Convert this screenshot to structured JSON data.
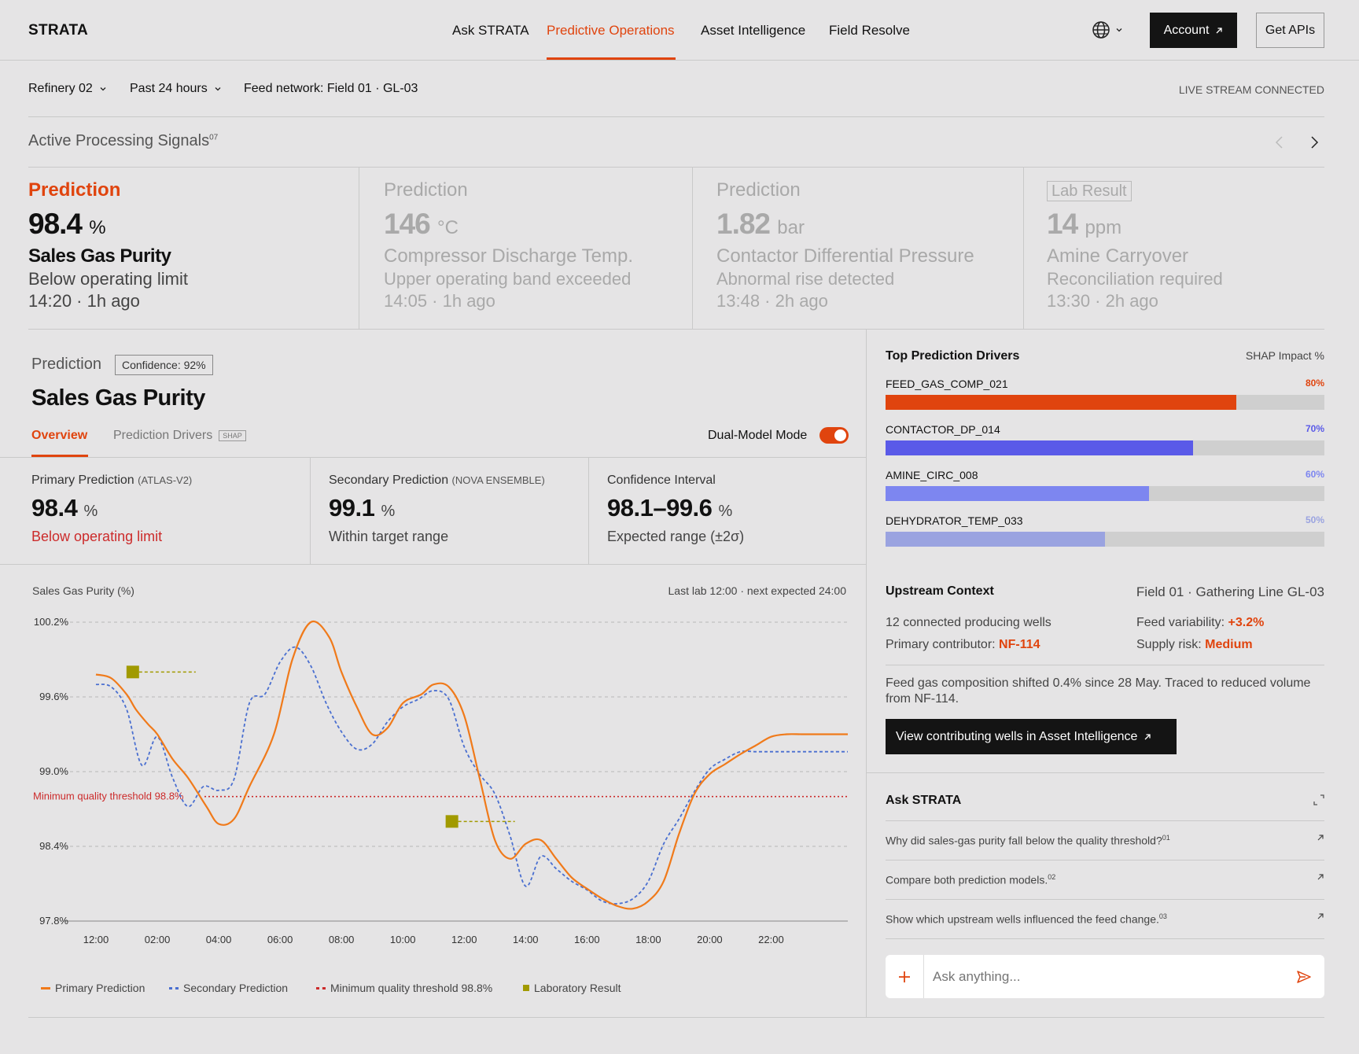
{
  "nav": {
    "logo": "STRATA",
    "links": [
      "Ask STRATA",
      "Predictive Operations",
      "Asset Intelligence",
      "Field Resolve"
    ],
    "active": "Predictive Operations",
    "account": "Account",
    "get_apis": "Get APIs"
  },
  "filters": {
    "site": "Refinery 02",
    "range": "Past 24 hours",
    "feed": "Feed network: Field 01 · GL-03",
    "status": "LIVE STREAM CONNECTED"
  },
  "signals_header": {
    "title": "Active Processing Signals",
    "count": "07"
  },
  "signals": [
    {
      "label": "Prediction",
      "value": "98.4",
      "unit": "%",
      "name": "Sales Gas Purity",
      "status": "Below operating limit",
      "time": "14:20 · 1h ago"
    },
    {
      "label": "Prediction",
      "value": "146",
      "unit": "°C",
      "name": "Compressor Discharge Temp.",
      "status": "Upper operating band exceeded",
      "time": "14:05 · 1h ago"
    },
    {
      "label": "Prediction",
      "value": "1.82",
      "unit": "bar",
      "name": "Contactor Differential Pressure",
      "status": "Abnormal rise detected",
      "time": "13:48 · 2h ago"
    },
    {
      "label": "Lab Result",
      "value": "14",
      "unit": "ppm",
      "name": "Amine Carryover",
      "status": "Reconciliation required",
      "time": "13:30 · 2h ago"
    }
  ],
  "detail": {
    "label": "Prediction",
    "confidence": "Confidence: 92%",
    "title": "Sales Gas Purity",
    "tab_overview": "Overview",
    "tab_drivers": "Prediction Drivers",
    "tab_badge": "SHAP",
    "dual_mode": "Dual-Model Mode",
    "dual_mode_on": true
  },
  "kpis": [
    {
      "title": "Primary Prediction",
      "model": "(ATLAS-V2)",
      "value": "98.4",
      "unit": "%",
      "status": "Below operating limit"
    },
    {
      "title": "Secondary Prediction",
      "model": "(NOVA ENSEMBLE)",
      "value": "99.1",
      "unit": "%",
      "status": "Within target range"
    },
    {
      "title": "Confidence Interval",
      "model": "",
      "value": "98.1–99.6",
      "unit": "%",
      "status": "Expected range (±2σ)"
    }
  ],
  "chart_data": {
    "type": "line",
    "ylabel": "Sales Gas Purity (%)",
    "note": "Last lab 12:00 · next expected 24:00",
    "ylim": [
      97.8,
      100.2
    ],
    "y_ticks": [
      "100.2%",
      "99.6%",
      "99.0%",
      "98.4%",
      "97.8%"
    ],
    "x_ticks": [
      "12:00",
      "02:00",
      "04:00",
      "06:00",
      "08:00",
      "10:00",
      "12:00",
      "14:00",
      "16:00",
      "18:00",
      "20:00",
      "22:00"
    ],
    "threshold": {
      "label": "Minimum quality threshold 98.8%",
      "value": 98.8
    },
    "series": [
      {
        "name": "Primary Prediction",
        "color": "#f07a1a",
        "x": [
          0,
          0.5,
          1,
          1.3,
          1.7,
          2,
          2.5,
          3,
          3.6,
          4,
          4.5,
          5,
          5.8,
          6.4,
          7,
          7.6,
          8,
          8.5,
          9,
          9.5,
          10,
          10.6,
          11,
          11.5,
          12,
          12.5,
          13,
          13.5,
          14,
          14.5,
          15,
          15.5,
          16,
          16.5,
          17,
          17.5,
          18,
          18.5,
          19,
          19.5,
          20,
          20.5,
          21,
          21.5,
          22,
          22.5,
          23,
          23.5,
          24,
          24.5
        ],
        "y": [
          99.78,
          99.75,
          99.62,
          99.5,
          99.38,
          99.3,
          99.1,
          98.95,
          98.72,
          98.58,
          98.62,
          98.88,
          99.3,
          99.9,
          100.2,
          100.08,
          99.8,
          99.52,
          99.3,
          99.35,
          99.55,
          99.62,
          99.7,
          99.68,
          99.45,
          98.95,
          98.45,
          98.3,
          98.42,
          98.45,
          98.3,
          98.15,
          98.06,
          97.98,
          97.92,
          97.9,
          97.96,
          98.12,
          98.5,
          98.82,
          98.98,
          99.06,
          99.14,
          99.21,
          99.28,
          99.3,
          99.3,
          99.3,
          99.3,
          99.3
        ]
      },
      {
        "name": "Secondary Prediction",
        "color": "#4a6fd0",
        "x": [
          0,
          0.5,
          1,
          1.5,
          2,
          2.5,
          3,
          3.5,
          4,
          4.5,
          5,
          5.5,
          6,
          6.5,
          7,
          7.5,
          8,
          8.5,
          9,
          9.5,
          10,
          10.5,
          11,
          11.5,
          12,
          12.5,
          13,
          13.5,
          14,
          14.5,
          15,
          15.5,
          16,
          16.5,
          17,
          17.5,
          18,
          18.5,
          19,
          19.5,
          20,
          20.5,
          21,
          21.5,
          22,
          22.5,
          23,
          23.5,
          24,
          24.5
        ],
        "y": [
          99.7,
          99.68,
          99.5,
          99.05,
          99.28,
          98.95,
          98.72,
          98.88,
          98.85,
          98.94,
          99.55,
          99.62,
          99.88,
          100.0,
          99.85,
          99.55,
          99.32,
          99.18,
          99.22,
          99.4,
          99.52,
          99.58,
          99.65,
          99.58,
          99.2,
          98.98,
          98.82,
          98.48,
          98.08,
          98.32,
          98.22,
          98.12,
          98.05,
          97.96,
          97.94,
          97.98,
          98.12,
          98.42,
          98.62,
          98.84,
          99.02,
          99.1,
          99.16,
          99.16,
          99.16,
          99.16,
          99.16,
          99.16,
          99.16,
          99.16
        ]
      },
      {
        "name": "Minimum quality threshold 98.8%",
        "color": "#cc2b2b"
      },
      {
        "name": "Laboratory Result",
        "color": "#a19a00",
        "points": [
          {
            "x": 1.2,
            "y": 99.8
          },
          {
            "x": 11.6,
            "y": 98.6
          }
        ]
      }
    ]
  },
  "drivers": {
    "title": "Top Prediction Drivers",
    "metric": "SHAP Impact %",
    "items": [
      {
        "name": "FEED_GAS_COMP_021",
        "pct": "80%",
        "value": 80,
        "color": "#e0440e"
      },
      {
        "name": "CONTACTOR_DP_014",
        "pct": "70%",
        "value": 70,
        "color": "#5a5ae8"
      },
      {
        "name": "AMINE_CIRC_008",
        "pct": "60%",
        "value": 60,
        "color": "#7d86f0"
      },
      {
        "name": "DEHYDRATOR_TEMP_033",
        "pct": "50%",
        "value": 50,
        "color": "#9aa3e0"
      }
    ]
  },
  "upstream": {
    "title": "Upstream Context",
    "field": "Field 01 · Gathering Line GL-03",
    "wells": "12 connected producing wells",
    "contrib_label": "Primary contributor: ",
    "contrib_value": "NF-114",
    "var_label": "Feed variability: ",
    "var_value": "+3.2%",
    "risk_label": "Supply risk: ",
    "risk_value": "Medium",
    "note": "Feed gas composition shifted 0.4% since 28 May. Traced to reduced volume from NF-114.",
    "button": "View contributing wells in Asset Intelligence"
  },
  "ask": {
    "title": "Ask STRATA",
    "questions": [
      {
        "text": "Why did sales-gas purity fall below the quality threshold?",
        "num": "01"
      },
      {
        "text": "Compare both prediction models.",
        "num": "02"
      },
      {
        "text": "Show which upstream wells influenced the feed change.",
        "num": "03"
      }
    ],
    "placeholder": "Ask anything..."
  }
}
